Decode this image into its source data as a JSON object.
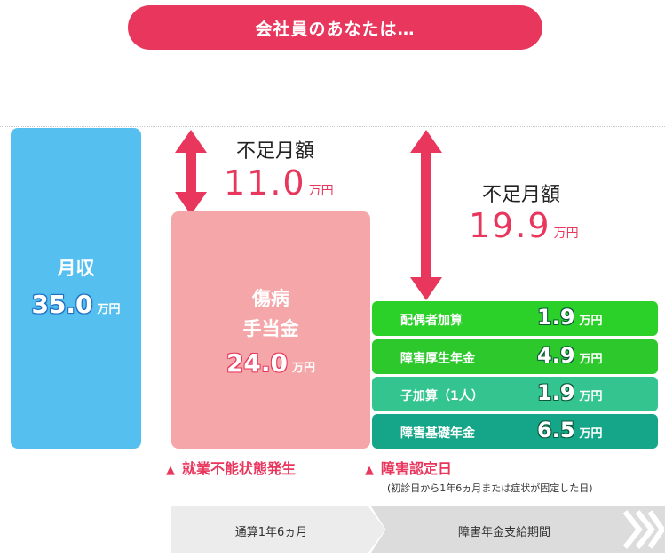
{
  "header": {
    "title": "会社員のあなたは…"
  },
  "salary": {
    "label": "月収",
    "value": "35.0",
    "unit": "万円"
  },
  "sickness_allowance": {
    "label_line1": "傷病",
    "label_line2": "手当金",
    "value": "24.0",
    "unit": "万円"
  },
  "shortage_1": {
    "label": "不足月額",
    "value": "11.0",
    "unit": "万円"
  },
  "shortage_2": {
    "label": "不足月額",
    "value": "19.9",
    "unit": "万円"
  },
  "pension_rows": [
    {
      "name": "配偶者加算",
      "value": "1.9",
      "unit": "万円",
      "color": "#2bd029"
    },
    {
      "name": "障害厚生年金",
      "value": "4.9",
      "unit": "万円",
      "color": "#2cc82c"
    },
    {
      "name": "子加算（1人）",
      "value": "1.9",
      "unit": "万円",
      "color": "#33c48f"
    },
    {
      "name": "障害基礎年金",
      "value": "6.5",
      "unit": "万円",
      "color": "#15a689"
    }
  ],
  "markers": {
    "incapacity": "就業不能状態発生",
    "disability_date": "障害認定日",
    "disability_note": "(初診日から1年6ヵ月または症状が固定した日)"
  },
  "timeline": {
    "period_1": "通算1年6ヵ月",
    "period_2": "障害年金支給期間"
  },
  "colors": {
    "accent": "#e8365d",
    "salary_bar": "#55c0ef",
    "sickness_box": "#f4a6a8"
  }
}
